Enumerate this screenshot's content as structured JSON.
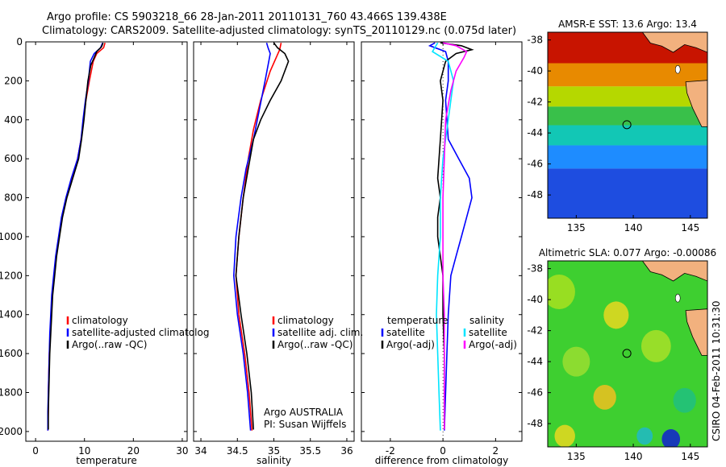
{
  "header": {
    "line1": "Argo profile: CS 5903218_66 28-Jan-2011 20110131_760 43.466S 139.438E",
    "line2": "Climatology: CARS2009. Satellite-adjusted climatology: synTS_20110129.nc (0.075d later)"
  },
  "watermark": "CSIRO 04-Feb-2011 10:31:30",
  "colors": {
    "climatology": "#ff0000",
    "satellite": "#0000ff",
    "argo": "#000000",
    "satellite_salinity_diff": "#00e5ff",
    "argo_salinity_diff": "#ff00ff",
    "land": "#f2b17e"
  },
  "chart_data": [
    {
      "type": "line",
      "id": "temperature-profile",
      "xlabel": "temperature",
      "xlim": [
        -2,
        31
      ],
      "xticks": [
        0,
        10,
        20,
        30
      ],
      "ylim": [
        2050,
        0
      ],
      "yticks": [
        0,
        200,
        400,
        600,
        800,
        1000,
        1200,
        1400,
        1600,
        1800,
        2000
      ],
      "legend": [
        "climatology",
        "satellite-adjusted climatolog",
        "Argo(..raw -QC)"
      ],
      "series": [
        {
          "name": "climatology",
          "color": "#ff0000",
          "points": [
            [
              14.2,
              5
            ],
            [
              13.9,
              30
            ],
            [
              12.5,
              60
            ],
            [
              11.8,
              100
            ],
            [
              11.0,
              200
            ],
            [
              10.3,
              300
            ],
            [
              9.8,
              400
            ],
            [
              9.3,
              500
            ],
            [
              8.6,
              600
            ],
            [
              7.4,
              700
            ],
            [
              6.3,
              800
            ],
            [
              5.4,
              900
            ],
            [
              4.8,
              1000
            ],
            [
              4.2,
              1100
            ],
            [
              3.8,
              1200
            ],
            [
              3.4,
              1300
            ],
            [
              3.2,
              1400
            ],
            [
              3.0,
              1500
            ],
            [
              2.8,
              1600
            ],
            [
              2.7,
              1700
            ],
            [
              2.6,
              1800
            ],
            [
              2.6,
              1900
            ],
            [
              2.5,
              1995
            ]
          ]
        },
        {
          "name": "satellite-adjusted climatolog",
          "color": "#0000ff",
          "points": [
            [
              13.7,
              5
            ],
            [
              13.3,
              30
            ],
            [
              12.0,
              60
            ],
            [
              11.2,
              100
            ],
            [
              10.8,
              200
            ],
            [
              10.2,
              300
            ],
            [
              9.7,
              400
            ],
            [
              9.3,
              500
            ],
            [
              8.6,
              600
            ],
            [
              7.3,
              700
            ],
            [
              6.2,
              800
            ],
            [
              5.3,
              900
            ],
            [
              4.7,
              1000
            ],
            [
              4.1,
              1100
            ],
            [
              3.7,
              1200
            ],
            [
              3.3,
              1300
            ],
            [
              3.1,
              1400
            ],
            [
              2.9,
              1500
            ],
            [
              2.8,
              1600
            ],
            [
              2.7,
              1700
            ],
            [
              2.6,
              1800
            ],
            [
              2.5,
              1900
            ],
            [
              2.5,
              1995
            ]
          ]
        },
        {
          "name": "Argo(..raw -QC)",
          "color": "#000000",
          "points": [
            [
              13.8,
              5
            ],
            [
              13.5,
              25
            ],
            [
              12.5,
              50
            ],
            [
              12.0,
              80
            ],
            [
              11.3,
              120
            ],
            [
              10.7,
              200
            ],
            [
              10.3,
              300
            ],
            [
              9.9,
              400
            ],
            [
              9.4,
              500
            ],
            [
              8.8,
              600
            ],
            [
              7.6,
              700
            ],
            [
              6.4,
              800
            ],
            [
              5.5,
              900
            ],
            [
              4.9,
              1000
            ],
            [
              4.3,
              1100
            ],
            [
              3.9,
              1200
            ],
            [
              3.5,
              1300
            ],
            [
              3.3,
              1400
            ],
            [
              3.1,
              1500
            ],
            [
              2.9,
              1600
            ],
            [
              2.8,
              1700
            ],
            [
              2.7,
              1800
            ],
            [
              2.6,
              1900
            ],
            [
              2.6,
              1990
            ]
          ]
        }
      ]
    },
    {
      "type": "line",
      "id": "salinity-profile",
      "xlabel": "salinity",
      "xlim": [
        33.9,
        36.1
      ],
      "xticks": [
        34,
        34.5,
        35,
        35.5,
        36
      ],
      "ylim": [
        2050,
        0
      ],
      "yticks": [
        0,
        200,
        400,
        600,
        800,
        1000,
        1200,
        1400,
        1600,
        1800,
        2000
      ],
      "legend": [
        "climatology",
        "satellite adj. clim.",
        "Argo(..raw -QC)"
      ],
      "annotations": [
        "Argo AUSTRALIA",
        "PI: Susan Wijffels"
      ],
      "series": [
        {
          "name": "climatology",
          "color": "#ff0000",
          "points": [
            [
              35.1,
              5
            ],
            [
              35.08,
              40
            ],
            [
              34.95,
              150
            ],
            [
              34.82,
              300
            ],
            [
              34.72,
              450
            ],
            [
              34.65,
              600
            ],
            [
              34.58,
              800
            ],
            [
              34.52,
              1000
            ],
            [
              34.48,
              1200
            ],
            [
              34.52,
              1400
            ],
            [
              34.6,
              1600
            ],
            [
              34.66,
              1800
            ],
            [
              34.7,
              1995
            ]
          ]
        },
        {
          "name": "satellite adj. clim.",
          "color": "#0000ff",
          "points": [
            [
              34.9,
              5
            ],
            [
              34.92,
              30
            ],
            [
              34.95,
              60
            ],
            [
              34.93,
              100
            ],
            [
              34.88,
              200
            ],
            [
              34.8,
              350
            ],
            [
              34.72,
              500
            ],
            [
              34.62,
              650
            ],
            [
              34.55,
              800
            ],
            [
              34.48,
              1000
            ],
            [
              34.45,
              1200
            ],
            [
              34.5,
              1400
            ],
            [
              34.58,
              1600
            ],
            [
              34.64,
              1800
            ],
            [
              34.68,
              1995
            ]
          ]
        },
        {
          "name": "Argo(..raw -QC)",
          "color": "#000000",
          "points": [
            [
              35.0,
              5
            ],
            [
              35.05,
              30
            ],
            [
              35.15,
              60
            ],
            [
              35.2,
              100
            ],
            [
              35.1,
              200
            ],
            [
              34.95,
              300
            ],
            [
              34.82,
              400
            ],
            [
              34.72,
              500
            ],
            [
              34.65,
              650
            ],
            [
              34.58,
              800
            ],
            [
              34.52,
              1000
            ],
            [
              34.48,
              1200
            ],
            [
              34.55,
              1400
            ],
            [
              34.63,
              1600
            ],
            [
              34.69,
              1800
            ],
            [
              34.72,
              1990
            ]
          ]
        }
      ]
    },
    {
      "type": "line",
      "id": "difference-profile",
      "xlabel": "difference from climatology",
      "xlim": [
        -3.1,
        3.0
      ],
      "xticks": [
        -2,
        0,
        2
      ],
      "ylim": [
        2050,
        0
      ],
      "yticks": [
        0,
        200,
        400,
        600,
        800,
        1000,
        1200,
        1400,
        1600,
        1800,
        2000
      ],
      "legend_headers": [
        "temperature",
        "salinity"
      ],
      "legend": [
        "satellite",
        "Argo(-adj)",
        "satellite",
        "Argo(-adj)"
      ],
      "series": [
        {
          "name": "satellite",
          "group": "temperature",
          "color": "#0000ff",
          "points": [
            [
              -0.3,
              5
            ],
            [
              -0.5,
              20
            ],
            [
              0.1,
              50
            ],
            [
              0.2,
              100
            ],
            [
              0.2,
              200
            ],
            [
              0.1,
              300
            ],
            [
              0.2,
              500
            ],
            [
              0.6,
              600
            ],
            [
              1.0,
              700
            ],
            [
              1.1,
              800
            ],
            [
              0.9,
              900
            ],
            [
              0.7,
              1000
            ],
            [
              0.5,
              1100
            ],
            [
              0.3,
              1200
            ],
            [
              0.2,
              1400
            ],
            [
              0.15,
              1600
            ],
            [
              0.1,
              1800
            ],
            [
              0.05,
              1995
            ]
          ]
        },
        {
          "name": "Argo(-adj)",
          "group": "temperature",
          "color": "#000000",
          "points": [
            [
              -0.1,
              5
            ],
            [
              0.7,
              20
            ],
            [
              1.1,
              40
            ],
            [
              0.5,
              60
            ],
            [
              0.1,
              100
            ],
            [
              -0.1,
              200
            ],
            [
              0.0,
              300
            ],
            [
              -0.1,
              500
            ],
            [
              -0.2,
              700
            ],
            [
              -0.1,
              800
            ],
            [
              -0.2,
              900
            ],
            [
              -0.2,
              1000
            ],
            [
              0.0,
              1200
            ],
            [
              0.0,
              1400
            ],
            [
              0.05,
              1600
            ],
            [
              0.05,
              1800
            ],
            [
              0.05,
              1990
            ]
          ]
        },
        {
          "name": "satellite",
          "group": "salinity",
          "color": "#00e5ff",
          "points": [
            [
              -0.2,
              5
            ],
            [
              -0.4,
              50
            ],
            [
              0.2,
              100
            ],
            [
              0.4,
              200
            ],
            [
              0.3,
              300
            ],
            [
              0.2,
              400
            ],
            [
              0.1,
              500
            ],
            [
              0.0,
              600
            ],
            [
              -0.1,
              800
            ],
            [
              -0.1,
              1000
            ],
            [
              -0.2,
              1200
            ],
            [
              -0.25,
              1400
            ],
            [
              -0.2,
              1600
            ],
            [
              -0.15,
              1800
            ],
            [
              -0.1,
              1995
            ]
          ]
        },
        {
          "name": "Argo(-adj)",
          "group": "salinity",
          "color": "#ff00ff",
          "points": [
            [
              0.0,
              5
            ],
            [
              0.5,
              20
            ],
            [
              0.9,
              50
            ],
            [
              0.8,
              80
            ],
            [
              0.5,
              150
            ],
            [
              0.3,
              250
            ],
            [
              0.1,
              400
            ],
            [
              0.05,
              600
            ],
            [
              0.0,
              800
            ],
            [
              0.0,
              1000
            ],
            [
              0.0,
              1200
            ],
            [
              0.05,
              1400
            ],
            [
              0.05,
              1600
            ],
            [
              0.05,
              1800
            ],
            [
              0.05,
              1990
            ]
          ]
        }
      ]
    },
    {
      "type": "heatmap",
      "id": "sst-map",
      "title": "AMSR-E SST: 13.6 Argo: 13.4",
      "xlim": [
        132.5,
        146.5
      ],
      "ylim": [
        -49.5,
        -37.5
      ],
      "xticks": [
        135,
        140,
        145
      ],
      "yticks": [
        -38,
        -40,
        -42,
        -44,
        -46,
        -48
      ],
      "argo_position": [
        139.438,
        -43.466
      ],
      "bands": [
        {
          "from_lat": -37.5,
          "to_lat": -39.5,
          "color": "#c81400"
        },
        {
          "from_lat": -39.5,
          "to_lat": -41.0,
          "color": "#e88a00"
        },
        {
          "from_lat": -41.0,
          "to_lat": -42.3,
          "color": "#b5d800"
        },
        {
          "from_lat": -42.3,
          "to_lat": -43.5,
          "color": "#39c04a"
        },
        {
          "from_lat": -43.5,
          "to_lat": -44.8,
          "color": "#12c7b5"
        },
        {
          "from_lat": -44.8,
          "to_lat": -46.3,
          "color": "#1e8cff"
        },
        {
          "from_lat": -46.3,
          "to_lat": -49.5,
          "color": "#1e4de0"
        }
      ]
    },
    {
      "type": "heatmap",
      "id": "sla-map",
      "title": "Altimetric SLA: 0.077 Argo: -0.00086",
      "xlim": [
        132.5,
        146.5
      ],
      "ylim": [
        -49.5,
        -37.5
      ],
      "xticks": [
        135,
        140,
        145
      ],
      "yticks": [
        -38,
        -40,
        -42,
        -44,
        -46,
        -48
      ],
      "argo_position": [
        139.438,
        -43.466
      ],
      "base_color": "#3ecf30",
      "blobs": [
        {
          "lon": 133.5,
          "lat": -39.5,
          "r": 1.4,
          "color": "#a8e020"
        },
        {
          "lon": 138.5,
          "lat": -41.0,
          "r": 1.1,
          "color": "#e8d820"
        },
        {
          "lon": 137.5,
          "lat": -46.3,
          "r": 1.0,
          "color": "#f0c020"
        },
        {
          "lon": 135.0,
          "lat": -44.0,
          "r": 1.2,
          "color": "#9ade30"
        },
        {
          "lon": 142.0,
          "lat": -43.0,
          "r": 1.3,
          "color": "#a8e028"
        },
        {
          "lon": 144.5,
          "lat": -46.5,
          "r": 1.0,
          "color": "#20c080"
        },
        {
          "lon": 143.3,
          "lat": -49.0,
          "r": 0.8,
          "color": "#1020d0"
        },
        {
          "lon": 141.0,
          "lat": -48.8,
          "r": 0.7,
          "color": "#20b8c8"
        },
        {
          "lon": 134.0,
          "lat": -48.8,
          "r": 0.9,
          "color": "#e8d820"
        }
      ]
    }
  ]
}
